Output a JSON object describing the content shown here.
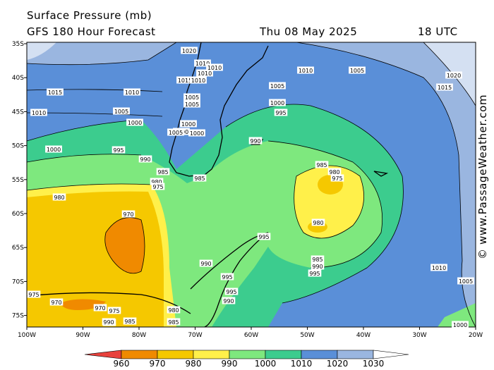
{
  "header": {
    "title_line1": "Surface Pressure (mb)",
    "title_line2": "GFS 180 Hour Forecast",
    "date": "Thu 08 May 2025",
    "time": "18 UTC"
  },
  "credit": "© www.PassageWeather.com",
  "axes": {
    "lat_labels": [
      "35S",
      "40S",
      "45S",
      "50S",
      "55S",
      "60S",
      "65S",
      "70S",
      "75S"
    ],
    "lon_labels": [
      "100W",
      "90W",
      "80W",
      "70W",
      "60W",
      "50W",
      "40W",
      "30W",
      "20W"
    ]
  },
  "legend": {
    "ticks": [
      "960",
      "970",
      "980",
      "990",
      "1000",
      "1010",
      "1020",
      "1030"
    ],
    "colors": [
      "#e8413c",
      "#f08a00",
      "#f5c800",
      "#fff04a",
      "#7ee87e",
      "#3ccc8e",
      "#5a8fd8",
      "#9ab6e0",
      "#d4e0f2",
      "#ffffff"
    ]
  },
  "isobar_labels": [
    "1020",
    "1010",
    "1010",
    "1010",
    "1015",
    "1010",
    "1005",
    "1005",
    "1010",
    "1005",
    "1000",
    "1000",
    "1000",
    "1005",
    "1000",
    "995",
    "1010",
    "1005",
    "1020",
    "1015",
    "1000",
    "990",
    "985",
    "980",
    "975",
    "980",
    "985",
    "990",
    "995",
    "995",
    "1015",
    "1010",
    "1005",
    "1000",
    "995",
    "990",
    "985",
    "980",
    "975",
    "980",
    "970",
    "985",
    "990",
    "995",
    "990",
    "995",
    "975",
    "970",
    "970",
    "975",
    "985",
    "980",
    "980",
    "985",
    "990",
    "1010",
    "1005",
    "1000"
  ]
}
